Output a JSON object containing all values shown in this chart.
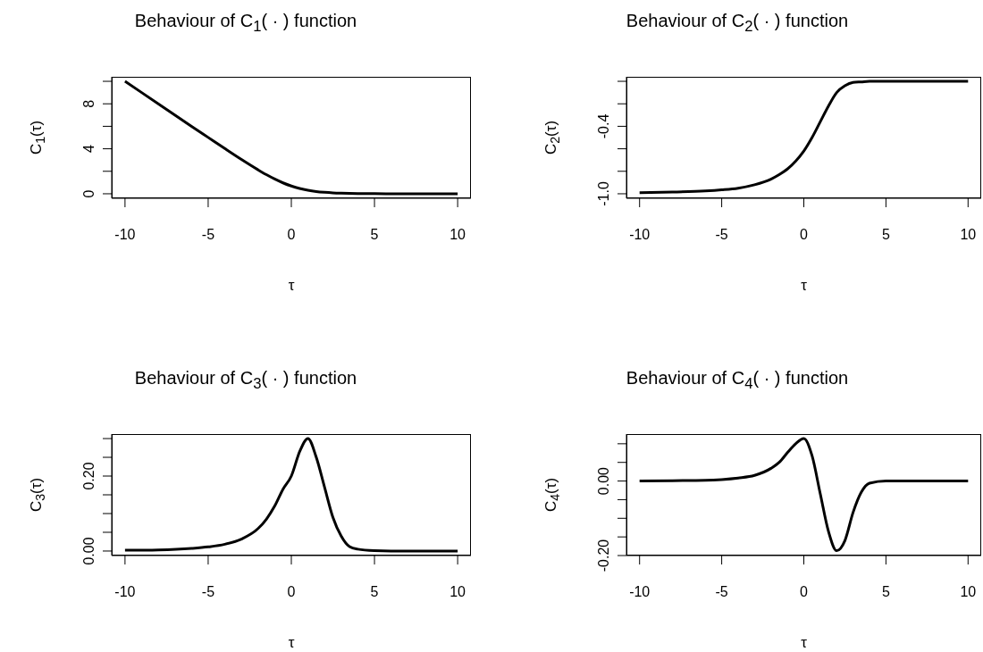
{
  "chart_data": [
    {
      "type": "line",
      "title": "Behaviour of C$_{1}$( · ) function",
      "xlabel": "τ",
      "ylabel": "C$_{1}$(τ)",
      "x": [
        -10,
        -8,
        -6,
        -5,
        -4,
        -3,
        -2,
        -1.5,
        -1,
        -0.5,
        0,
        0.5,
        1,
        1.5,
        2,
        2.5,
        3,
        3.5,
        4,
        5,
        6,
        8,
        10
      ],
      "series": [
        {
          "color": "#000000",
          "values": [
            10,
            8,
            6,
            5.01,
            4.02,
            3.05,
            2.13,
            1.7,
            1.31,
            0.97,
            0.69,
            0.47,
            0.31,
            0.2,
            0.13,
            0.08,
            0.05,
            0.03,
            0.02,
            0.01,
            0,
            0,
            0
          ]
        }
      ],
      "xlim": [
        -10.8,
        10.8
      ],
      "xticks": [
        -10,
        -5,
        0,
        5,
        10
      ],
      "ylim": [
        -0.4,
        10.4
      ],
      "yticks": [
        0,
        {
          "value": 2,
          "label": null
        },
        4,
        {
          "value": 6,
          "label": null
        },
        8,
        {
          "value": 10,
          "label": null
        }
      ]
    },
    {
      "type": "line",
      "title": "Behaviour of C$_{2}$( · ) function",
      "xlabel": "τ",
      "ylabel": "C$_{2}$(τ)",
      "x": [
        -10,
        -8,
        -6,
        -5,
        -4,
        -3,
        -2,
        -1.5,
        -1,
        -0.5,
        0,
        0.5,
        1,
        1.5,
        2,
        2.5,
        3,
        3.5,
        4,
        5,
        6,
        8,
        10
      ],
      "series": [
        {
          "color": "#000000",
          "values": [
            -0.99,
            -0.985,
            -0.975,
            -0.965,
            -0.95,
            -0.92,
            -0.87,
            -0.83,
            -0.78,
            -0.71,
            -0.62,
            -0.5,
            -0.36,
            -0.22,
            -0.1,
            -0.04,
            -0.01,
            -0.005,
            0,
            0,
            0,
            0,
            0
          ]
        }
      ],
      "xlim": [
        -10.8,
        10.8
      ],
      "xticks": [
        -10,
        -5,
        0,
        5,
        10
      ],
      "ylim": [
        -1.04,
        0.04
      ],
      "yticks": [
        {
          "value": -1,
          "label": "-1.0"
        },
        {
          "value": -0.8,
          "label": null
        },
        {
          "value": -0.6,
          "label": null
        },
        -0.4,
        {
          "value": -0.2,
          "label": null
        },
        {
          "value": 0,
          "label": null
        }
      ]
    },
    {
      "type": "line",
      "title": "Behaviour of C$_{3}$( · ) function",
      "xlabel": "τ",
      "ylabel": "C$_{3}$(τ)",
      "x": [
        -10,
        -8,
        -6,
        -5,
        -4,
        -3,
        -2,
        -1.5,
        -1,
        -0.5,
        0,
        0.5,
        1,
        1.5,
        2,
        2.5,
        3,
        3.5,
        4,
        5,
        6,
        8,
        10
      ],
      "series": [
        {
          "color": "#000000",
          "values": [
            0.002,
            0.003,
            0.007,
            0.011,
            0.018,
            0.032,
            0.06,
            0.085,
            0.12,
            0.165,
            0.2,
            0.265,
            0.3,
            0.25,
            0.17,
            0.09,
            0.04,
            0.012,
            0.005,
            0.001,
            0,
            0,
            0
          ]
        }
      ],
      "xlim": [
        -10.8,
        10.8
      ],
      "xticks": [
        -10,
        -5,
        0,
        5,
        10
      ],
      "ylim": [
        -0.012,
        0.312
      ],
      "yticks": [
        {
          "value": 0,
          "label": "0.00"
        },
        {
          "value": 0.05,
          "label": null
        },
        {
          "value": 0.1,
          "label": null
        },
        {
          "value": 0.15,
          "label": null
        },
        {
          "value": 0.2,
          "label": "0.20"
        },
        {
          "value": 0.25,
          "label": null
        },
        {
          "value": 0.3,
          "label": null
        }
      ]
    },
    {
      "type": "line",
      "title": "Behaviour of C$_{4}$( · ) function",
      "xlabel": "τ",
      "ylabel": "C$_{4}$(τ)",
      "x": [
        -10,
        -8,
        -6,
        -5,
        -4,
        -3,
        -2,
        -1.5,
        -1,
        -0.5,
        0,
        0.5,
        1,
        1.5,
        2,
        2.5,
        3,
        3.5,
        4,
        5,
        6,
        8,
        10
      ],
      "series": [
        {
          "color": "#000000",
          "values": [
            0,
            0.001,
            0.002,
            0.004,
            0.008,
            0.015,
            0.034,
            0.05,
            0.076,
            0.1,
            0.114,
            0.068,
            -0.034,
            -0.135,
            -0.187,
            -0.16,
            -0.084,
            -0.03,
            -0.006,
            0,
            0,
            0,
            0
          ]
        }
      ],
      "xlim": [
        -10.8,
        10.8
      ],
      "xticks": [
        -10,
        -5,
        0,
        5,
        10
      ],
      "ylim": [
        -0.2,
        0.126
      ],
      "yticks": [
        {
          "value": -0.2,
          "label": "-0.20"
        },
        {
          "value": -0.15,
          "label": null
        },
        {
          "value": -0.1,
          "label": null
        },
        {
          "value": -0.05,
          "label": null
        },
        {
          "value": 0,
          "label": "0.00"
        },
        {
          "value": 0.05,
          "label": null
        },
        {
          "value": 0.1,
          "label": null
        }
      ]
    }
  ]
}
